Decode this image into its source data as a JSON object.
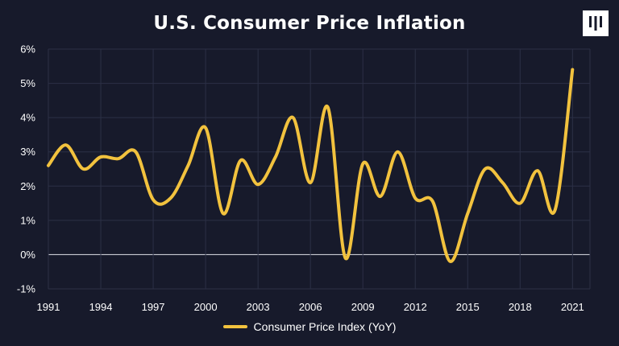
{
  "chart_data": {
    "type": "line",
    "title": "U.S. Consumer Price Inflation",
    "xlabel": "",
    "ylabel": "",
    "x": [
      1991,
      1992,
      1993,
      1994,
      1995,
      1996,
      1997,
      1998,
      1999,
      2000,
      2001,
      2002,
      2003,
      2004,
      2005,
      2006,
      2007,
      2008,
      2009,
      2010,
      2011,
      2012,
      2013,
      2014,
      2015,
      2016,
      2017,
      2018,
      2019,
      2020,
      2021
    ],
    "xlim": [
      1991,
      2022
    ],
    "ylim": [
      -1,
      6
    ],
    "x_ticks": [
      "1991",
      "1994",
      "1997",
      "2000",
      "2003",
      "2006",
      "2009",
      "2012",
      "2015",
      "2018",
      "2021"
    ],
    "y_ticks": [
      "-1%",
      "0%",
      "1%",
      "2%",
      "3%",
      "4%",
      "5%",
      "6%"
    ],
    "grid": true,
    "legend_position": "bottom-center",
    "series": [
      {
        "name": "Consumer Price Index (YoY)",
        "color": "#f2c23e",
        "values": [
          2.6,
          3.2,
          2.5,
          2.85,
          2.8,
          3.0,
          1.6,
          1.65,
          2.6,
          3.7,
          1.2,
          2.75,
          2.05,
          2.85,
          4.0,
          2.1,
          4.3,
          -0.1,
          2.65,
          1.7,
          3.0,
          1.65,
          1.55,
          -0.2,
          1.2,
          2.5,
          2.1,
          1.5,
          2.45,
          1.3,
          5.4
        ]
      }
    ]
  },
  "brand": {
    "logo_icon": "pillar-logo-icon"
  }
}
